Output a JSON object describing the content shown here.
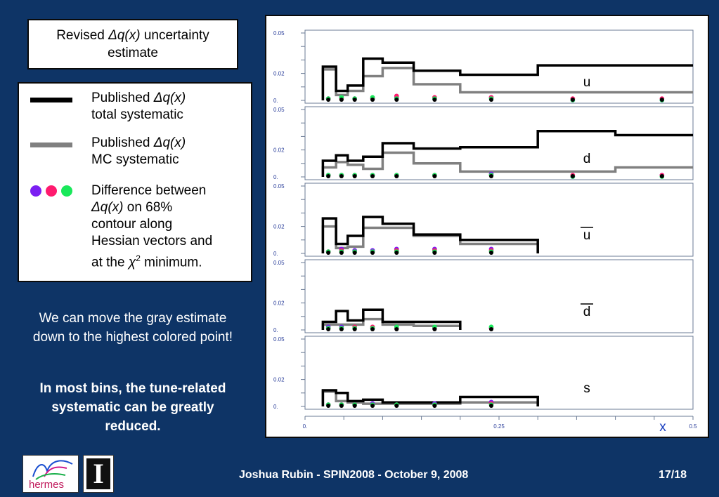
{
  "title": {
    "prefix": "Revised ",
    "symbol": "Δq(x)",
    "suffix": " uncertainty",
    "line2": "estimate"
  },
  "legend": {
    "total": {
      "line1_prefix": "Published ",
      "line1_symbol": "Δq(x)",
      "line2": "total systematic",
      "color": "#000000"
    },
    "mc": {
      "line1_prefix": "Published ",
      "line1_symbol": "Δq(x)",
      "line2": "MC systematic",
      "color": "#808080"
    },
    "diff": {
      "line1": "Difference between",
      "line2_symbol": "Δq(x)",
      "line2_suffix": " on 68%",
      "line3": "contour along",
      "line4": "Hessian vectors and",
      "line5_prefix": "at the ",
      "line5_chi": "χ",
      "line5_sup": "2",
      "line5_suffix": " minimum.",
      "dot_colors": [
        "#7b1ff2",
        "#ff1a6e",
        "#19e85a"
      ]
    }
  },
  "notes": {
    "note1": "We can move the gray estimate down to the highest colored point!",
    "note2": "In most bins, the tune-related systematic can be greatly reduced."
  },
  "footer": {
    "text": "Joshua Rubin - SPIN2008 - October 9, 2008",
    "page": "17/18"
  },
  "logos": {
    "hermes": "hermes",
    "illinois": "I"
  },
  "chart_data": {
    "type": "line",
    "xlabel": "x",
    "xlim": [
      0,
      0.5
    ],
    "ylim": [
      0,
      0.05
    ],
    "x_ticks": [
      "0.",
      "0.25",
      "0.5"
    ],
    "y_ticks": [
      "0.05",
      "0.02",
      "0."
    ],
    "bin_edges": [
      0.023,
      0.04,
      0.055,
      0.075,
      0.1,
      0.14,
      0.2,
      0.3,
      0.4,
      0.6
    ],
    "colors": {
      "total": "#000000",
      "mc": "#808080",
      "dots": [
        "#7b1ff2",
        "#ff1a6e",
        "#19e85a"
      ]
    },
    "dot_x": [
      0.03,
      0.047,
      0.064,
      0.087,
      0.118,
      0.167,
      0.24,
      0.345,
      0.46
    ],
    "panels": [
      {
        "label": "u",
        "bar": false,
        "total": [
          0.025,
          0.007,
          0.011,
          0.031,
          0.028,
          0.022,
          0.019,
          0.026,
          0.026
        ],
        "mc": [
          0.023,
          0.004,
          0.007,
          0.018,
          0.024,
          0.012,
          0.006,
          0.006,
          0.006
        ],
        "dots": [
          [
            0.001,
            0.001,
            0.001
          ],
          [
            0.002,
            0.001,
            0.002
          ],
          [
            0.001,
            0.001,
            0.001
          ],
          [
            0.001,
            0.001,
            0.002
          ],
          [
            0.002,
            0.003,
            0.001
          ],
          [
            0.001,
            0.002,
            0.001
          ],
          [
            0.002,
            0.002,
            0.001
          ],
          [
            0.0,
            0.001,
            0.0
          ],
          [
            0.0,
            0.001,
            0.0
          ]
        ]
      },
      {
        "label": "d",
        "bar": false,
        "total": [
          0.012,
          0.016,
          0.012,
          0.015,
          0.025,
          0.021,
          0.022,
          0.034,
          0.031
        ],
        "mc": [
          0.007,
          0.011,
          0.009,
          0.006,
          0.018,
          0.01,
          0.004,
          0.004,
          0.007
        ],
        "dots": [
          [
            0.001,
            0.001,
            0.001
          ],
          [
            0.001,
            0.001,
            0.001
          ],
          [
            0.001,
            0.001,
            0.001
          ],
          [
            0.001,
            0.001,
            0.001
          ],
          [
            0.001,
            0.001,
            0.001
          ],
          [
            0.001,
            0.001,
            0.001
          ],
          [
            0.002,
            0.001,
            0.001
          ],
          [
            0.0,
            0.001,
            0.0
          ],
          [
            0.001,
            0.001,
            0.0
          ]
        ]
      },
      {
        "label": "u",
        "bar": true,
        "total": [
          0.026,
          0.007,
          0.013,
          0.027,
          0.022,
          0.014,
          0.01,
          null,
          null
        ],
        "mc": [
          0.02,
          0.004,
          0.005,
          0.019,
          0.019,
          0.013,
          0.007,
          null,
          null
        ],
        "dots": [
          [
            0.001,
            0.001,
            0.001
          ],
          [
            0.003,
            0.002,
            0.001
          ],
          [
            0.002,
            0.001,
            0.001
          ],
          [
            0.002,
            0.001,
            0.001
          ],
          [
            0.003,
            0.002,
            0.001
          ],
          [
            0.003,
            0.002,
            0.001
          ],
          [
            0.003,
            0.002,
            0.001
          ],
          null,
          null
        ]
      },
      {
        "label": "d",
        "bar": true,
        "total": [
          0.006,
          0.014,
          0.007,
          0.015,
          0.006,
          0.006,
          null,
          null,
          null
        ],
        "mc": [
          0.004,
          0.004,
          0.004,
          0.008,
          0.004,
          0.003,
          null,
          null,
          null
        ],
        "dots": [
          [
            0.002,
            0.001,
            0.001
          ],
          [
            0.002,
            0.001,
            0.001
          ],
          [
            0.001,
            0.002,
            0.001
          ],
          [
            0.001,
            0.002,
            0.001
          ],
          [
            0.001,
            0.001,
            0.002
          ],
          [
            0.001,
            0.001,
            0.002
          ],
          [
            0.001,
            0.001,
            0.002
          ],
          null,
          null
        ]
      },
      {
        "label": "s",
        "bar": false,
        "total": [
          0.012,
          0.01,
          0.004,
          0.005,
          0.003,
          0.003,
          0.007,
          null,
          null
        ],
        "mc": [
          0.011,
          0.004,
          0.003,
          0.002,
          0.002,
          0.002,
          0.003,
          null,
          null
        ],
        "dots": [
          [
            0.001,
            0.001,
            0.001
          ],
          [
            0.001,
            0.001,
            0.001
          ],
          [
            0.001,
            0.001,
            0.001
          ],
          [
            0.002,
            0.001,
            0.001
          ],
          [
            0.001,
            0.001,
            0.001
          ],
          [
            0.002,
            0.001,
            0.001
          ],
          [
            0.003,
            0.002,
            0.001
          ],
          null,
          null
        ]
      }
    ]
  }
}
